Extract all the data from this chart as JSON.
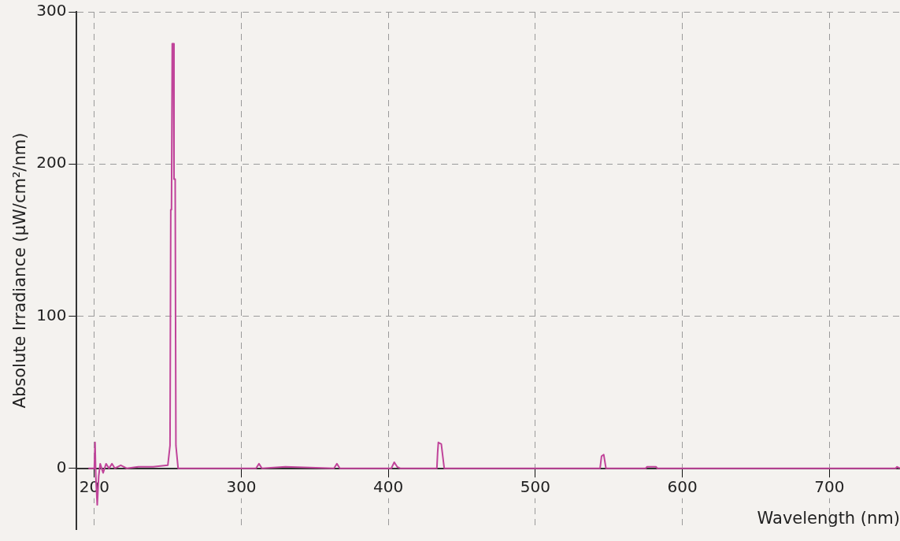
{
  "chart_data": {
    "type": "line",
    "xlabel": "Wavelength (nm)",
    "ylabel": "Absolute Irradiance (µW/cm²/nm)",
    "xlim": [
      188,
      748
    ],
    "ylim": [
      -40,
      300
    ],
    "xticks": [
      200,
      300,
      400,
      500,
      600,
      700
    ],
    "yticks": [
      0,
      100,
      200,
      300
    ],
    "grid": true,
    "legend": false,
    "marker": "none",
    "line_style": "solid",
    "series": [
      {
        "color": "#c0449a",
        "x": [
          196,
          200,
          200.5,
          201,
          202,
          203,
          204,
          206,
          208,
          210,
          212,
          214,
          218,
          222,
          230,
          240,
          250,
          251.5,
          252,
          252.5,
          253,
          253.8,
          254.2,
          255,
          255.5,
          256,
          257,
          270,
          310,
          312,
          314,
          330,
          363,
          365,
          367,
          402,
          404,
          406,
          408,
          433,
          433.5,
          434,
          436,
          437,
          438,
          544,
          545,
          546.5,
          548,
          575,
          576,
          582,
          583,
          700,
          745,
          746,
          748
        ],
        "values": [
          0,
          0,
          17,
          -5,
          -24,
          -5,
          3,
          -3,
          3,
          0,
          3,
          0,
          2,
          0,
          1,
          1,
          2,
          15,
          170,
          170,
          279,
          279,
          190,
          190,
          15,
          10,
          0,
          0,
          0,
          3,
          0,
          1,
          0,
          3,
          0,
          0,
          4,
          1,
          0,
          0,
          10,
          17,
          16,
          8,
          0,
          0,
          8,
          9,
          0,
          0,
          1,
          1,
          0,
          0,
          0,
          1,
          0
        ]
      }
    ]
  }
}
